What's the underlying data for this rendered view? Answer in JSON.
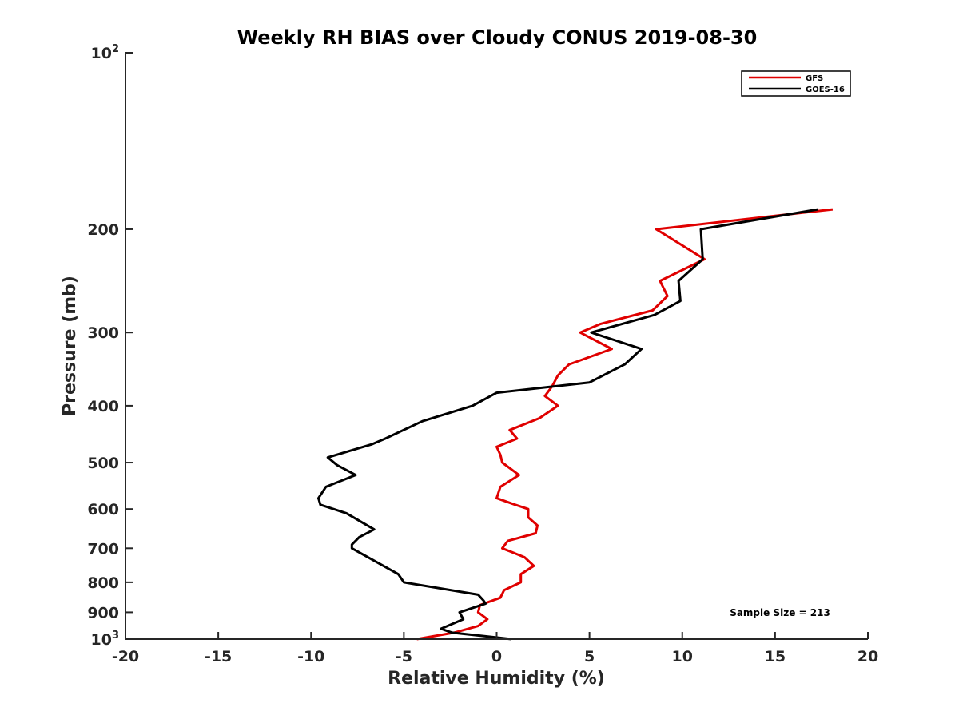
{
  "chart_data": {
    "type": "line",
    "title": "Weekly RH BIAS over Cloudy CONUS 2019-08-30",
    "xlabel": "Relative Humidity (%)",
    "ylabel": "Pressure (mb)",
    "xlim": [
      -20,
      20
    ],
    "ylim": [
      1000,
      100
    ],
    "y_scale": "log",
    "y_reversed": true,
    "grid": false,
    "legend_position": "top-right",
    "x_ticks": [
      -20,
      -15,
      -10,
      -5,
      0,
      5,
      10,
      15,
      20
    ],
    "x_tick_labels": [
      "-20",
      "-15",
      "-10",
      "-5",
      "0",
      "5",
      "10",
      "15",
      "20"
    ],
    "y_ticks": [
      {
        "value": 100,
        "base": "10",
        "exp": "2"
      },
      {
        "value": 200,
        "label": "200"
      },
      {
        "value": 300,
        "label": "300"
      },
      {
        "value": 400,
        "label": "400"
      },
      {
        "value": 500,
        "label": "500"
      },
      {
        "value": 600,
        "label": "600"
      },
      {
        "value": 700,
        "label": "700"
      },
      {
        "value": 800,
        "label": "800"
      },
      {
        "value": 900,
        "label": "900"
      },
      {
        "value": 1000,
        "base": "10",
        "exp": "3"
      }
    ],
    "annotation": "Sample Size = 213",
    "series": [
      {
        "name": "GFS",
        "color": "#e00000",
        "points": [
          [
            -4.3,
            1000
          ],
          [
            -2.3,
            975
          ],
          [
            -1.0,
            950
          ],
          [
            -0.5,
            925
          ],
          [
            -1.0,
            900
          ],
          [
            -0.9,
            875
          ],
          [
            0.2,
            850
          ],
          [
            0.4,
            825
          ],
          [
            1.3,
            800
          ],
          [
            1.3,
            775
          ],
          [
            2.0,
            750
          ],
          [
            1.5,
            725
          ],
          [
            0.3,
            700
          ],
          [
            0.6,
            680
          ],
          [
            2.1,
            660
          ],
          [
            2.2,
            640
          ],
          [
            1.7,
            620
          ],
          [
            1.7,
            600
          ],
          [
            1.0,
            590
          ],
          [
            0.0,
            575
          ],
          [
            0.2,
            550
          ],
          [
            1.2,
            525
          ],
          [
            0.3,
            500
          ],
          [
            0.2,
            485
          ],
          [
            0.0,
            470
          ],
          [
            1.1,
            455
          ],
          [
            0.7,
            440
          ],
          [
            2.3,
            420
          ],
          [
            3.3,
            400
          ],
          [
            2.6,
            385
          ],
          [
            3.0,
            370
          ],
          [
            3.3,
            355
          ],
          [
            3.9,
            340
          ],
          [
            6.2,
            320
          ],
          [
            4.5,
            300
          ],
          [
            5.6,
            290
          ],
          [
            8.4,
            275
          ],
          [
            9.2,
            260
          ],
          [
            8.8,
            245
          ],
          [
            11.2,
            225
          ],
          [
            8.6,
            200
          ],
          [
            18.1,
            185
          ]
        ]
      },
      {
        "name": "GOES-16",
        "color": "#000000",
        "points": [
          [
            0.8,
            1000
          ],
          [
            -2.4,
            975
          ],
          [
            -3.0,
            960
          ],
          [
            -1.8,
            925
          ],
          [
            -2.0,
            900
          ],
          [
            -0.6,
            870
          ],
          [
            -0.7,
            860
          ],
          [
            -1.0,
            840
          ],
          [
            -5.0,
            800
          ],
          [
            -5.3,
            775
          ],
          [
            -7.8,
            700
          ],
          [
            -7.8,
            690
          ],
          [
            -7.4,
            670
          ],
          [
            -6.6,
            650
          ],
          [
            -8.1,
            610
          ],
          [
            -9.5,
            590
          ],
          [
            -9.6,
            575
          ],
          [
            -9.2,
            550
          ],
          [
            -7.6,
            525
          ],
          [
            -8.6,
            505
          ],
          [
            -9.1,
            490
          ],
          [
            -6.7,
            465
          ],
          [
            -6.0,
            455
          ],
          [
            -4.0,
            425
          ],
          [
            -1.3,
            400
          ],
          [
            0.0,
            380
          ],
          [
            5.0,
            365
          ],
          [
            6.9,
            340
          ],
          [
            7.8,
            320
          ],
          [
            5.1,
            300
          ],
          [
            8.5,
            280
          ],
          [
            9.9,
            265
          ],
          [
            9.8,
            245
          ],
          [
            11.1,
            225
          ],
          [
            11.0,
            200
          ],
          [
            17.3,
            185
          ]
        ]
      }
    ]
  }
}
